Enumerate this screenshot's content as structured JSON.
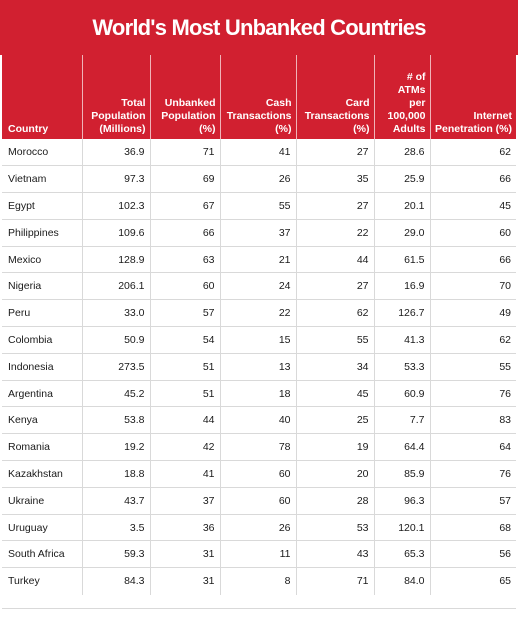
{
  "chart_data": {
    "type": "table",
    "title": "World's Most Unbanked Countries",
    "columns": [
      "Country",
      "Total Population (Millions)",
      "Unbanked Population (%)",
      "Cash Transactions (%)",
      "Card Transactions (%)",
      "# of ATMs per 100,000 Adults",
      "Internet Penetration (%)"
    ],
    "rows": [
      [
        "Morocco",
        "36.9",
        "71",
        "41",
        "27",
        "28.6",
        "62"
      ],
      [
        "Vietnam",
        "97.3",
        "69",
        "26",
        "35",
        "25.9",
        "66"
      ],
      [
        "Egypt",
        "102.3",
        "67",
        "55",
        "27",
        "20.1",
        "45"
      ],
      [
        "Philippines",
        "109.6",
        "66",
        "37",
        "22",
        "29.0",
        "60"
      ],
      [
        "Mexico",
        "128.9",
        "63",
        "21",
        "44",
        "61.5",
        "66"
      ],
      [
        "Nigeria",
        "206.1",
        "60",
        "24",
        "27",
        "16.9",
        "70"
      ],
      [
        "Peru",
        "33.0",
        "57",
        "22",
        "62",
        "126.7",
        "49"
      ],
      [
        "Colombia",
        "50.9",
        "54",
        "15",
        "55",
        "41.3",
        "62"
      ],
      [
        "Indonesia",
        "273.5",
        "51",
        "13",
        "34",
        "53.3",
        "55"
      ],
      [
        "Argentina",
        "45.2",
        "51",
        "18",
        "45",
        "60.9",
        "76"
      ],
      [
        "Kenya",
        "53.8",
        "44",
        "40",
        "25",
        "7.7",
        "83"
      ],
      [
        "Romania",
        "19.2",
        "42",
        "78",
        "19",
        "64.4",
        "64"
      ],
      [
        "Kazakhstan",
        "18.8",
        "41",
        "60",
        "20",
        "85.9",
        "76"
      ],
      [
        "Ukraine",
        "43.7",
        "37",
        "60",
        "28",
        "96.3",
        "57"
      ],
      [
        "Uruguay",
        "3.5",
        "36",
        "26",
        "53",
        "120.1",
        "68"
      ],
      [
        "South Africa",
        "59.3",
        "31",
        "11",
        "43",
        "65.3",
        "56"
      ],
      [
        "Turkey",
        "84.3",
        "31",
        "8",
        "71",
        "84.0",
        "65"
      ]
    ]
  },
  "colors": {
    "header_bg": "#d12030",
    "header_text": "#ffffff",
    "row_border": "#d9d9d9"
  }
}
